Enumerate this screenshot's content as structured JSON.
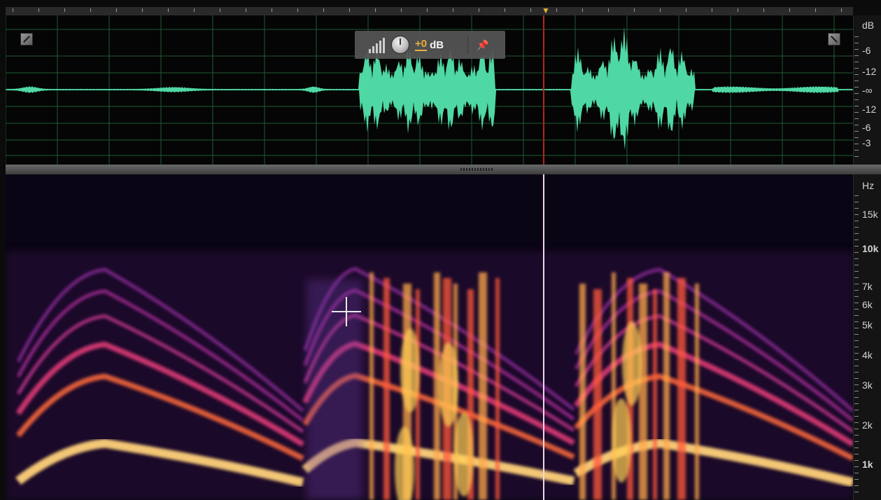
{
  "app": {
    "description": "Audio editor waveform and spectral frequency display"
  },
  "hud": {
    "gain_value": "+0",
    "gain_unit": "dB",
    "icons": [
      "volume-level-icon",
      "gain-knob-icon",
      "pin-icon"
    ]
  },
  "waveform": {
    "color": "#4fd8a3",
    "grid_color": "#1f5a34",
    "playhead_color": "#b3261e"
  },
  "db_scale": {
    "unit": "dB",
    "labels": [
      "-6",
      "-12",
      "-∞",
      "-12",
      "-6",
      "-3"
    ]
  },
  "hz_scale": {
    "unit": "Hz",
    "labels": [
      "15k",
      "10k",
      "7k",
      "6k",
      "5k",
      "4k",
      "3k",
      "2k",
      "1k"
    ]
  },
  "spectral": {
    "background": "#0a0514",
    "harmonic_color": "#c2348d",
    "hot_color": "#ffce55"
  }
}
